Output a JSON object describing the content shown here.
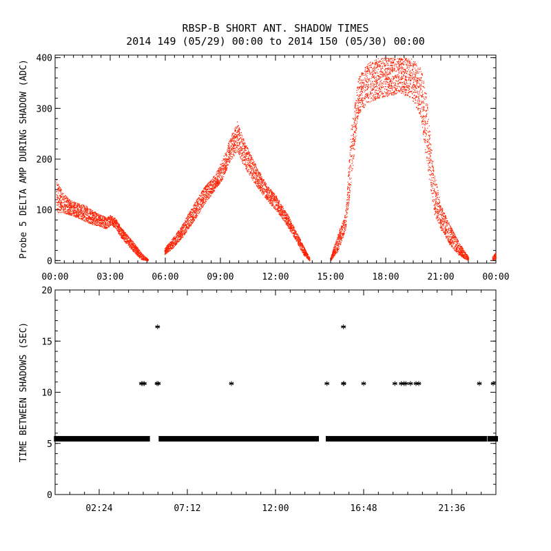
{
  "title": {
    "line1": "RBSP-B SHORT ANT. SHADOW TIMES",
    "line2": "2014 149 (05/29) 00:00 to 2014 150 (05/30) 00:00"
  },
  "colors": {
    "scatter": "#ff2000",
    "axes": "#000000",
    "background": "#ffffff"
  },
  "chart_data": [
    {
      "type": "scatter",
      "title": "RBSP-B SHORT ANT. SHADOW TIMES",
      "ylabel": "Probe 5 DELTA AMP DURING SHADOW (ADC)",
      "xlabel": "",
      "xlim_hours": [
        0,
        24
      ],
      "ylim": [
        -5,
        405
      ],
      "yticks": [
        0,
        100,
        200,
        300,
        400
      ],
      "ytick_labels": [
        "0",
        "100",
        "200",
        "300",
        "400"
      ],
      "xticks_hours": [
        0,
        3,
        6,
        9,
        12,
        15,
        18,
        21,
        24
      ],
      "xtick_labels": [
        "00:00",
        "03:00",
        "06:00",
        "09:00",
        "12:00",
        "15:00",
        "18:00",
        "21:00",
        "00:00"
      ],
      "series": [
        {
          "name": "Probe 5 delta amp",
          "marker": "dot",
          "envelope": [
            [
              0.05,
              95,
              160
            ],
            [
              0.4,
              95,
              135
            ],
            [
              0.8,
              90,
              120
            ],
            [
              1.2,
              85,
              115
            ],
            [
              1.6,
              78,
              110
            ],
            [
              2.0,
              72,
              100
            ],
            [
              2.4,
              68,
              92
            ],
            [
              2.8,
              62,
              85
            ],
            [
              3.0,
              70,
              90
            ],
            [
              3.25,
              65,
              85
            ],
            [
              3.6,
              45,
              65
            ],
            [
              4.0,
              28,
              48
            ],
            [
              4.4,
              12,
              30
            ],
            [
              4.7,
              2,
              15
            ],
            [
              5.05,
              0,
              3
            ]
          ],
          "envelope2": [
            [
              5.95,
              12,
              25
            ],
            [
              6.4,
              25,
              45
            ],
            [
              6.9,
              45,
              70
            ],
            [
              7.5,
              75,
              110
            ],
            [
              8.1,
              110,
              145
            ],
            [
              8.7,
              140,
              170
            ],
            [
              9.1,
              160,
              200
            ],
            [
              9.5,
              195,
              240
            ],
            [
              9.9,
              215,
              275
            ],
            [
              10.3,
              185,
              235
            ],
            [
              10.9,
              150,
              190
            ],
            [
              11.5,
              120,
              150
            ],
            [
              12.0,
              100,
              130
            ],
            [
              12.6,
              70,
              95
            ],
            [
              13.1,
              40,
              60
            ],
            [
              13.5,
              12,
              30
            ],
            [
              13.85,
              0,
              6
            ]
          ],
          "envelope3": [
            [
              15.0,
              0,
              8
            ],
            [
              15.4,
              20,
              55
            ],
            [
              15.8,
              60,
              95
            ],
            [
              16.1,
              150,
              260
            ],
            [
              16.5,
              290,
              360
            ],
            [
              17.0,
              310,
              390
            ],
            [
              17.6,
              320,
              400
            ],
            [
              18.2,
              325,
              400
            ],
            [
              18.8,
              330,
              400
            ],
            [
              19.4,
              320,
              400
            ],
            [
              19.9,
              280,
              380
            ],
            [
              20.2,
              200,
              330
            ],
            [
              20.6,
              95,
              180
            ],
            [
              21.0,
              60,
              110
            ],
            [
              21.5,
              30,
              70
            ],
            [
              22.0,
              10,
              35
            ],
            [
              22.5,
              0,
              8
            ]
          ],
          "envelope4": [
            [
              23.8,
              0,
              8
            ],
            [
              24.0,
              5,
              18
            ]
          ]
        }
      ]
    },
    {
      "type": "scatter",
      "ylabel": "TIME BETWEEN SHADOWS (SEC)",
      "xlabel": "",
      "xlim_hours": [
        0,
        24
      ],
      "ylim": [
        0,
        20
      ],
      "yticks": [
        0,
        5,
        10,
        15,
        20
      ],
      "ytick_labels": [
        "0",
        "5",
        "10",
        "15",
        "20"
      ],
      "xticks_hours": [
        2.4,
        7.2,
        12,
        16.8,
        21.6
      ],
      "xtick_labels": [
        "02:24",
        "07:12",
        "12:00",
        "16:48",
        "21:36"
      ],
      "series": [
        {
          "name": "Time between shadows",
          "marker": "asterisk",
          "baseline_value": 5.45,
          "baseline_ranges_hours": [
            [
              0.05,
              5.05
            ],
            [
              5.75,
              14.25
            ],
            [
              14.85,
              23.4
            ],
            [
              23.65,
              24.0
            ]
          ],
          "points": [
            [
              4.7,
              10.85
            ],
            [
              4.78,
              10.85
            ],
            [
              4.86,
              10.85
            ],
            [
              5.55,
              10.85
            ],
            [
              5.62,
              10.85
            ],
            [
              5.58,
              16.4
            ],
            [
              9.6,
              10.85
            ],
            [
              14.8,
              10.85
            ],
            [
              15.7,
              10.85
            ],
            [
              15.7,
              16.4
            ],
            [
              15.72,
              10.85
            ],
            [
              16.8,
              10.85
            ],
            [
              18.5,
              10.85
            ],
            [
              18.85,
              10.85
            ],
            [
              19.0,
              10.85
            ],
            [
              19.1,
              10.85
            ],
            [
              19.35,
              10.85
            ],
            [
              19.65,
              10.85
            ],
            [
              19.8,
              10.85
            ],
            [
              23.1,
              10.85
            ],
            [
              23.85,
              10.85
            ]
          ]
        }
      ]
    }
  ]
}
